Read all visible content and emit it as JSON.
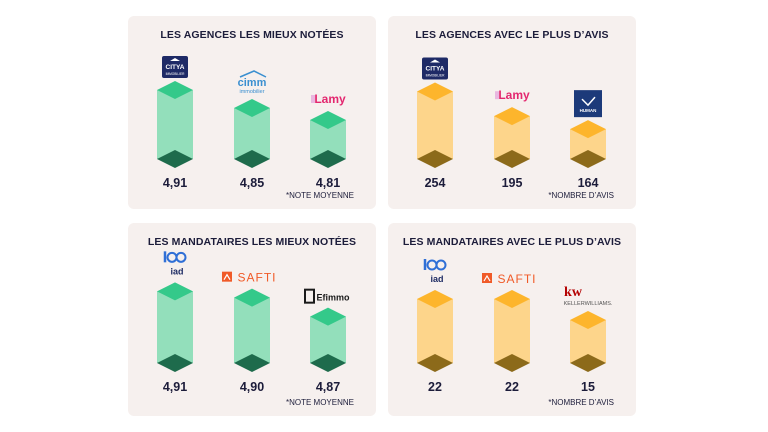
{
  "colors": {
    "green_light": "#93dfbb",
    "green_top": "#34c98a",
    "green_dark": "#1e6b4c",
    "orange_light": "#fdd58b",
    "orange_top": "#fdb52c",
    "orange_dark": "#8c6a1a",
    "text": "#1c1c3a",
    "card_bg": "#f6f0ee"
  },
  "chart_data": [
    {
      "type": "bar",
      "title": "LES AGENCES LES MIEUX NOTÉES",
      "note": "*NOTE MOYENNE",
      "categories": [
        "Citya Immobilier",
        "cimm immobilier",
        "Lamy"
      ],
      "logos": [
        "CITYA IMMOBILIER",
        "cimm immobilier",
        "Lamy"
      ],
      "values": [
        4.91,
        4.85,
        4.81
      ],
      "labels": [
        "4,91",
        "4,85",
        "4,81"
      ],
      "color": "green"
    },
    {
      "type": "bar",
      "title": "LES AGENCES AVEC LE PLUS D’AVIS",
      "note": "*NOMBRE D’AVIS",
      "categories": [
        "Citya Immobilier",
        "Lamy",
        "Human Immobilier"
      ],
      "logos": [
        "CITYA IMMOBILIER",
        "Lamy",
        "HUMAN"
      ],
      "values": [
        254,
        195,
        164
      ],
      "labels": [
        "254",
        "195",
        "164"
      ],
      "color": "orange"
    },
    {
      "type": "bar",
      "title": "LES MANDATAIRES LES MIEUX NOTÉES",
      "note": "*NOTE MOYENNE",
      "categories": [
        "iad",
        "SAFTI",
        "Efimmo"
      ],
      "logos": [
        "iad",
        "SAFTI",
        "Efimmo"
      ],
      "values": [
        4.91,
        4.9,
        4.87
      ],
      "labels": [
        "4,91",
        "4,90",
        "4,87"
      ],
      "color": "green"
    },
    {
      "type": "bar",
      "title": "LES MANDATAIRES AVEC LE PLUS D’AVIS",
      "note": "*NOMBRE D’AVIS",
      "categories": [
        "iad",
        "SAFTI",
        "Keller Williams"
      ],
      "logos": [
        "iad",
        "SAFTI",
        "KELLERWILLIAMS."
      ],
      "values": [
        22,
        22,
        15
      ],
      "labels": [
        "22",
        "22",
        "15"
      ],
      "color": "orange"
    }
  ]
}
